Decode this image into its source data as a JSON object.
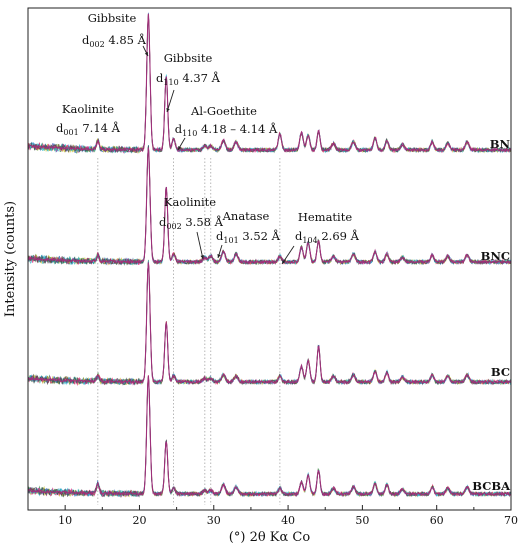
{
  "chart_data": {
    "type": "line",
    "title": "",
    "xlabel": "(°) 2θ Kα Co",
    "ylabel": "Intensity (counts)",
    "xlim": [
      5,
      70
    ],
    "x_ticks": [
      10,
      20,
      30,
      40,
      50,
      60,
      70
    ],
    "y_ticks_shown": false,
    "grid": false,
    "legend": "none",
    "stack_order_top_to_bottom": [
      "BN",
      "BNC",
      "BC",
      "BCBA"
    ],
    "peaks_2theta": [
      14.4,
      21.2,
      23.6,
      24.6,
      28.8,
      29.6,
      31.3,
      33.0,
      38.9,
      41.8,
      42.7,
      44.1,
      46.1,
      48.8,
      51.7,
      53.3,
      55.4,
      59.4,
      61.5,
      64.1
    ],
    "series": [
      {
        "name": "BN",
        "peak_heights": [
          0.06,
          1.0,
          0.55,
          0.08,
          0.03,
          0.03,
          0.07,
          0.06,
          0.12,
          0.13,
          0.11,
          0.14,
          0.05,
          0.06,
          0.09,
          0.07,
          0.04,
          0.06,
          0.05,
          0.06
        ]
      },
      {
        "name": "BNC",
        "peak_heights": [
          0.05,
          1.0,
          0.65,
          0.07,
          0.04,
          0.05,
          0.09,
          0.07,
          0.05,
          0.13,
          0.17,
          0.18,
          0.05,
          0.07,
          0.09,
          0.07,
          0.04,
          0.06,
          0.05,
          0.06
        ]
      },
      {
        "name": "BC",
        "peak_heights": [
          0.05,
          1.0,
          0.5,
          0.05,
          0.03,
          0.03,
          0.06,
          0.05,
          0.05,
          0.13,
          0.18,
          0.3,
          0.05,
          0.06,
          0.09,
          0.08,
          0.04,
          0.06,
          0.05,
          0.06
        ]
      },
      {
        "name": "BCBA",
        "peak_heights": [
          0.08,
          1.0,
          0.45,
          0.05,
          0.03,
          0.03,
          0.08,
          0.06,
          0.05,
          0.1,
          0.16,
          0.2,
          0.05,
          0.06,
          0.09,
          0.08,
          0.04,
          0.06,
          0.05,
          0.06
        ]
      }
    ],
    "reference_lines_2theta": [
      14.4,
      24.6,
      28.8,
      29.6,
      38.9
    ],
    "annotations": [
      {
        "mineral": "Gibbsite",
        "d_label": "d",
        "hkl": "002",
        "value": "4.85 Å",
        "peak_x": 21.2
      },
      {
        "mineral": "Gibbsite",
        "d_label": "d",
        "hkl": "110",
        "value": "4.37 Å",
        "peak_x": 23.6
      },
      {
        "mineral": "Kaolinite",
        "d_label": "d",
        "hkl": "001",
        "value": "7.14 Å",
        "peak_x": 14.4
      },
      {
        "mineral": "Al-Goethite",
        "d_label": "d",
        "hkl": "110",
        "value": "4.18 – 4.14 Å",
        "peak_x": 24.6
      },
      {
        "mineral": "Kaolinite",
        "d_label": "d",
        "hkl": "002",
        "value": "3.58 Å",
        "peak_x": 28.8
      },
      {
        "mineral": "Anatase",
        "d_label": "d",
        "hkl": "101",
        "value": "3.52 Å",
        "peak_x": 29.6
      },
      {
        "mineral": "Hematite",
        "d_label": "d",
        "hkl": "104",
        "value": "2.69 Å",
        "peak_x": 38.9
      }
    ]
  },
  "colors": {
    "trace_main": "#a0307a",
    "noise": [
      "#2e8b3d",
      "#1f5fbf",
      "#c8b820",
      "#e01a7a",
      "#1fb5c8",
      "#444444"
    ],
    "reference_line": "#9a9a9a",
    "axis": "#222222"
  }
}
